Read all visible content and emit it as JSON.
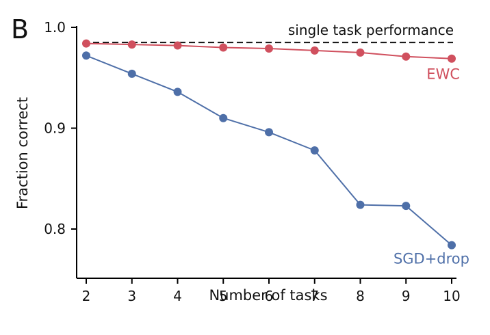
{
  "panel_label": "B",
  "colors": {
    "ewc": "#d0505e",
    "sgd": "#4e6fa8",
    "reference": "#111111"
  },
  "chart_data": {
    "type": "line",
    "title": "",
    "xlabel": "Number of tasks",
    "ylabel": "Fraction correct",
    "x": [
      2,
      3,
      4,
      5,
      6,
      7,
      8,
      9,
      10
    ],
    "xlim": [
      2,
      10
    ],
    "ylim": [
      0.75,
      1.0
    ],
    "yticks": [
      0.8,
      0.9,
      1.0
    ],
    "ytick_labels": [
      "0.8",
      "0.9",
      "1.0"
    ],
    "xtick_labels": [
      "2",
      "3",
      "4",
      "5",
      "6",
      "7",
      "8",
      "9",
      "10"
    ],
    "grid": false,
    "series": [
      {
        "name": "EWC",
        "color": "#d0505e",
        "values": [
          0.984,
          0.983,
          0.982,
          0.98,
          0.979,
          0.977,
          0.975,
          0.971,
          0.969
        ]
      },
      {
        "name": "SGD+drop",
        "color": "#4e6fa8",
        "values": [
          0.972,
          0.954,
          0.936,
          0.91,
          0.896,
          0.878,
          0.824,
          0.823,
          0.784
        ]
      }
    ],
    "reference_line": {
      "label": "single task performance",
      "value": 0.985,
      "style": "dashed"
    }
  }
}
